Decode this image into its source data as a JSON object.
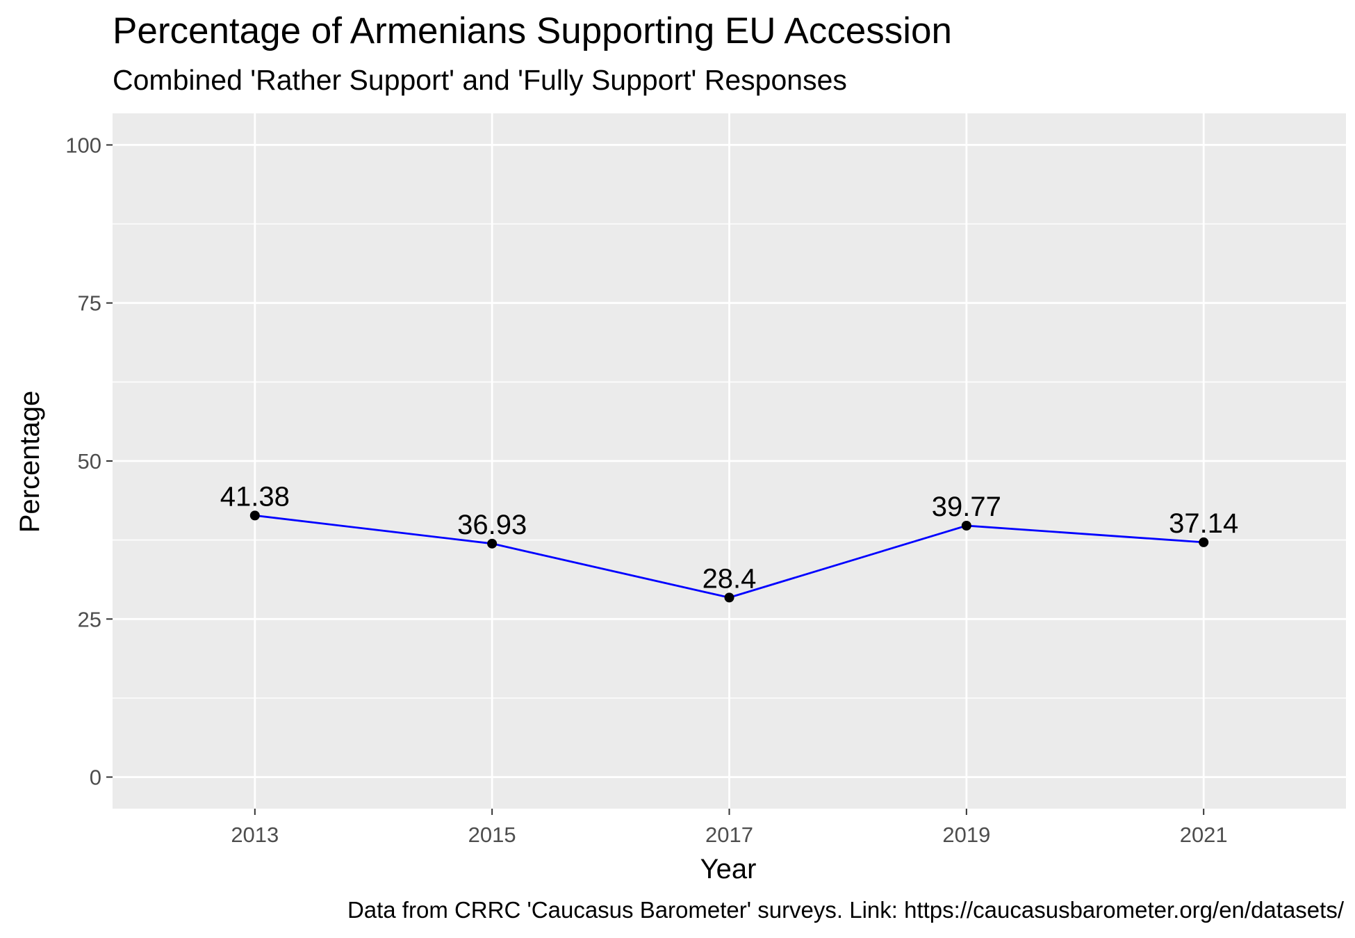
{
  "chart_data": {
    "type": "line",
    "title": "Percentage of Armenians Supporting EU Accession",
    "subtitle": "Combined 'Rather Support' and 'Fully Support' Responses",
    "caption": "Data from CRRC 'Caucasus Barometer' surveys. Link: https://caucasusbarometer.org/en/datasets/",
    "xlabel": "Year",
    "ylabel": "Percentage",
    "x": [
      2013,
      2015,
      2017,
      2019,
      2021
    ],
    "values": [
      41.38,
      36.93,
      28.4,
      39.77,
      37.14
    ],
    "data_labels": [
      "41.38",
      "36.93",
      "28.4",
      "39.77",
      "37.14"
    ],
    "x_ticks": [
      "2013",
      "2015",
      "2017",
      "2019",
      "2021"
    ],
    "y_ticks": [
      "0",
      "25",
      "50",
      "75",
      "100"
    ],
    "xlim": [
      2011.8,
      2022.2
    ],
    "ylim": [
      -5,
      105
    ],
    "grid": true,
    "colors": {
      "line": "#0000ff",
      "point": "#000000",
      "panel": "#ebebeb",
      "grid": "#ffffff"
    }
  }
}
